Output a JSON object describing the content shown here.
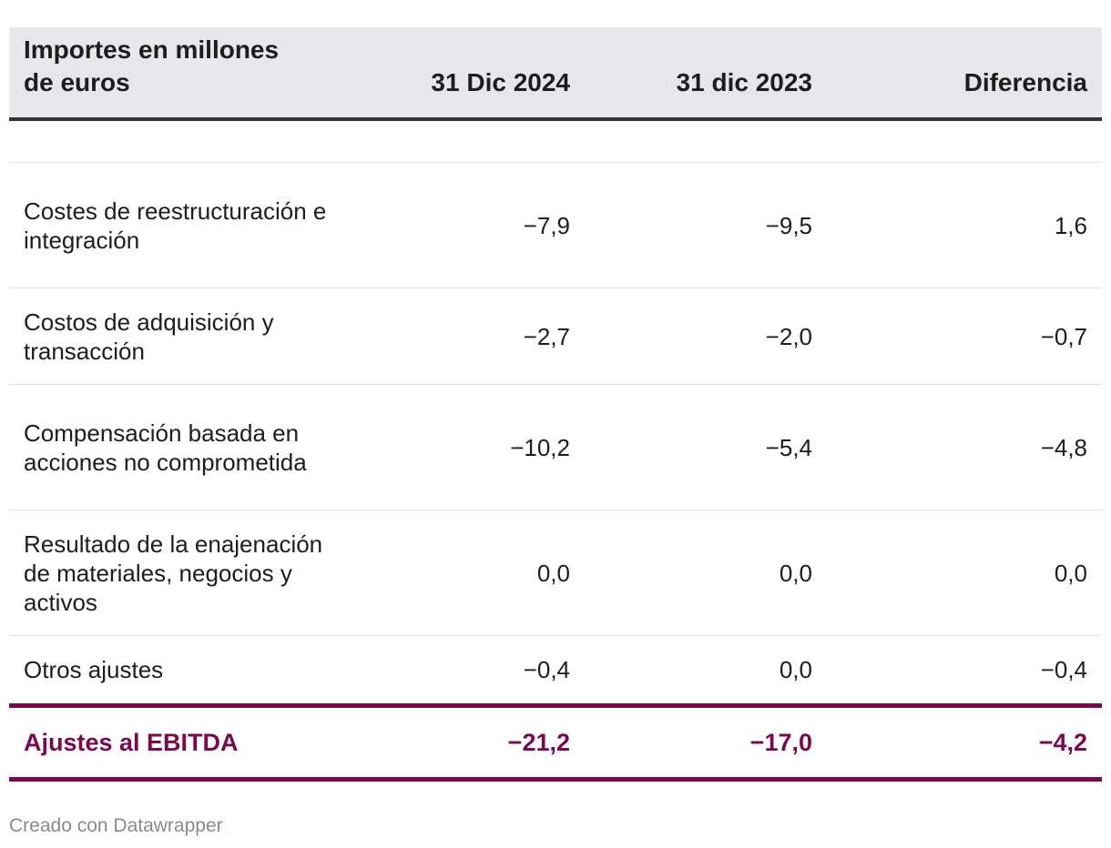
{
  "chart_data": {
    "type": "table",
    "title": "",
    "columns": [
      "Importes en millones de euros",
      "31 Dic 2024",
      "31 dic 2023",
      "Diferencia"
    ],
    "rows": [
      {
        "label": "Costes de reestructuración e integración",
        "v2024": "−7,9",
        "v2023": "−9,5",
        "diff": "1,6"
      },
      {
        "label": "Costos de adquisición y transacción",
        "v2024": "−2,7",
        "v2023": "−2,0",
        "diff": "−0,7"
      },
      {
        "label": "Compensación basada en acciones no comprometida",
        "v2024": "−10,2",
        "v2023": "−5,4",
        "diff": "−4,8"
      },
      {
        "label": "Resultado de la enajenación de materiales, negocios y activos",
        "v2024": "0,0",
        "v2023": "0,0",
        "diff": "0,0"
      },
      {
        "label": "Otros ajustes",
        "v2024": "−0,4",
        "v2023": "0,0",
        "diff": "−0,4"
      }
    ],
    "total": {
      "label": "Ajustes al EBITDA",
      "v2024": "−21,2",
      "v2023": "−17,0",
      "diff": "−4,2"
    },
    "values_2024": [
      -7.9,
      -2.7,
      -10.2,
      0.0,
      -0.4
    ],
    "values_2023": [
      -9.5,
      -2.0,
      -5.4,
      0.0,
      0.0
    ],
    "values_diff": [
      1.6,
      -0.7,
      -4.8,
      0.0,
      -0.4
    ],
    "total_values": [
      -21.2,
      -17.0,
      -4.2
    ]
  },
  "header": {
    "col1_line1": "Importes en millones",
    "col1_line2": "de euros",
    "col2": "31 Dic 2024",
    "col3": "31 dic 2023",
    "col4": "Diferencia"
  },
  "footer": {
    "credit": "Creado con Datawrapper"
  },
  "colors": {
    "accent": "#7a0a4e",
    "header_bg": "#e6e6eb",
    "footer_text": "#8a8a8a"
  }
}
